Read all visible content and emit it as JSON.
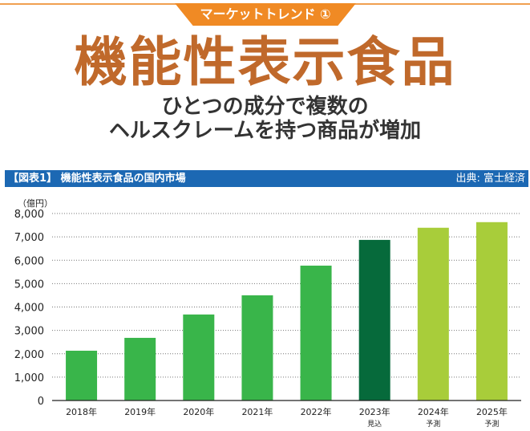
{
  "header": {
    "tab": "マーケットトレンド ①",
    "title": "機能性表示食品",
    "subtitle_line1": "ひとつの成分で複数の",
    "subtitle_line2": "ヘルスクレームを持つ商品が増加"
  },
  "figure": {
    "caption": "【図表1】 機能性表示食品の国内市場",
    "source": "出典: 富士経済"
  },
  "chart_data": {
    "type": "bar",
    "title": "【図表1】 機能性表示食品の国内市場",
    "ylabel": "（億円）",
    "ylim": [
      0,
      8000
    ],
    "yticks": [
      "0",
      "1,000",
      "2,000",
      "3,000",
      "4,000",
      "5,000",
      "6,000",
      "7,000",
      "8,000"
    ],
    "grid": true,
    "categories": [
      "2018年",
      "2019年",
      "2020年",
      "2021年",
      "2022年",
      "2023年",
      "2024年",
      "2025年"
    ],
    "category_notes": [
      "",
      "",
      "",
      "",
      "",
      "見込",
      "予測",
      "予測"
    ],
    "values": [
      2130,
      2680,
      3680,
      4500,
      5770,
      6870,
      7390,
      7630
    ],
    "colors": [
      "#39b54a",
      "#39b54a",
      "#39b54a",
      "#39b54a",
      "#39b54a",
      "#066a3b",
      "#a8cd3a",
      "#a8cd3a"
    ]
  }
}
